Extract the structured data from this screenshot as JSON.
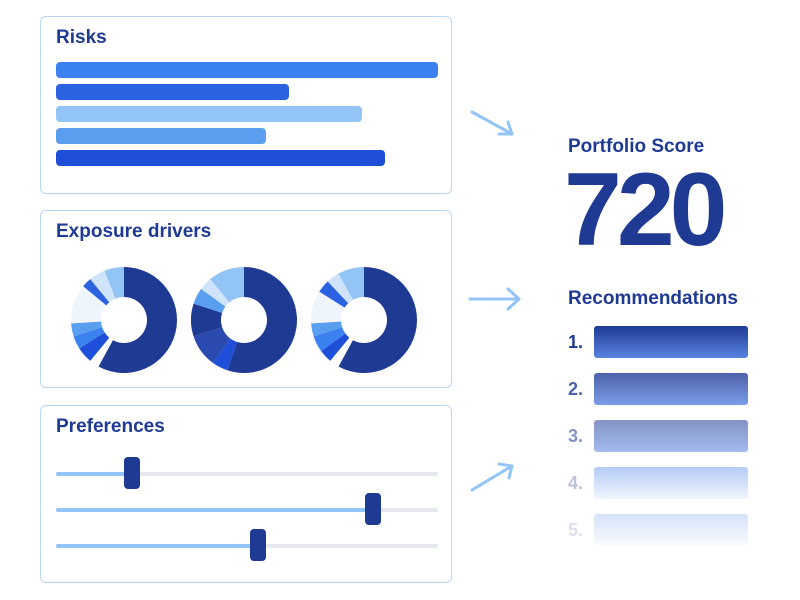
{
  "risks": {
    "title": "Risks",
    "bars": [
      {
        "value": 1.0,
        "color": "#3b82f0"
      },
      {
        "value": 0.61,
        "color": "#2a62e0"
      },
      {
        "value": 0.8,
        "color": "#92c4f5"
      },
      {
        "value": 0.55,
        "color": "#5a9ef0"
      },
      {
        "value": 0.86,
        "color": "#1f4fd8"
      }
    ]
  },
  "exposure": {
    "title": "Exposure drivers",
    "donuts": [
      [
        {
          "value": 0.58,
          "color": "#1f3a93"
        },
        {
          "value": 0.03,
          "color": "#ffffff"
        },
        {
          "value": 0.05,
          "color": "#1f4fd8"
        },
        {
          "value": 0.04,
          "color": "#3b82f0"
        },
        {
          "value": 0.04,
          "color": "#5a9ef0"
        },
        {
          "value": 0.12,
          "color": "#eef5fd"
        },
        {
          "value": 0.03,
          "color": "#2a62e0"
        },
        {
          "value": 0.05,
          "color": "#cfe3fa"
        },
        {
          "value": 0.06,
          "color": "#92c4f5"
        }
      ],
      [
        {
          "value": 0.55,
          "color": "#1f3a93"
        },
        {
          "value": 0.05,
          "color": "#1f4fd8"
        },
        {
          "value": 0.1,
          "color": "#2a4ab0"
        },
        {
          "value": 0.1,
          "color": "#1f3a93"
        },
        {
          "value": 0.05,
          "color": "#5a9ef0"
        },
        {
          "value": 0.04,
          "color": "#cfe3fa"
        },
        {
          "value": 0.11,
          "color": "#92c4f5"
        }
      ],
      [
        {
          "value": 0.58,
          "color": "#1f3a93"
        },
        {
          "value": 0.03,
          "color": "#ffffff"
        },
        {
          "value": 0.04,
          "color": "#1f4fd8"
        },
        {
          "value": 0.05,
          "color": "#3b82f0"
        },
        {
          "value": 0.04,
          "color": "#5a9ef0"
        },
        {
          "value": 0.1,
          "color": "#eef5fd"
        },
        {
          "value": 0.04,
          "color": "#2a62e0"
        },
        {
          "value": 0.04,
          "color": "#cfe3fa"
        },
        {
          "value": 0.08,
          "color": "#92c4f5"
        }
      ]
    ]
  },
  "preferences": {
    "title": "Preferences",
    "sliders": [
      {
        "value": 0.2
      },
      {
        "value": 0.83
      },
      {
        "value": 0.53
      }
    ]
  },
  "score": {
    "label": "Portfolio Score",
    "value": "720"
  },
  "recommendations": {
    "title": "Recommendations",
    "items": [
      {
        "number": "1.",
        "opacity": 1.0
      },
      {
        "number": "2.",
        "opacity": 0.8
      },
      {
        "number": "3.",
        "opacity": 0.55
      },
      {
        "number": "4.",
        "opacity": 0.3
      },
      {
        "number": "5.",
        "opacity": 0.1
      }
    ]
  },
  "colors": {
    "primary": "#1f3a93",
    "accent": "#3b82f0",
    "light": "#92c4f5",
    "border": "#b9d6f2"
  }
}
